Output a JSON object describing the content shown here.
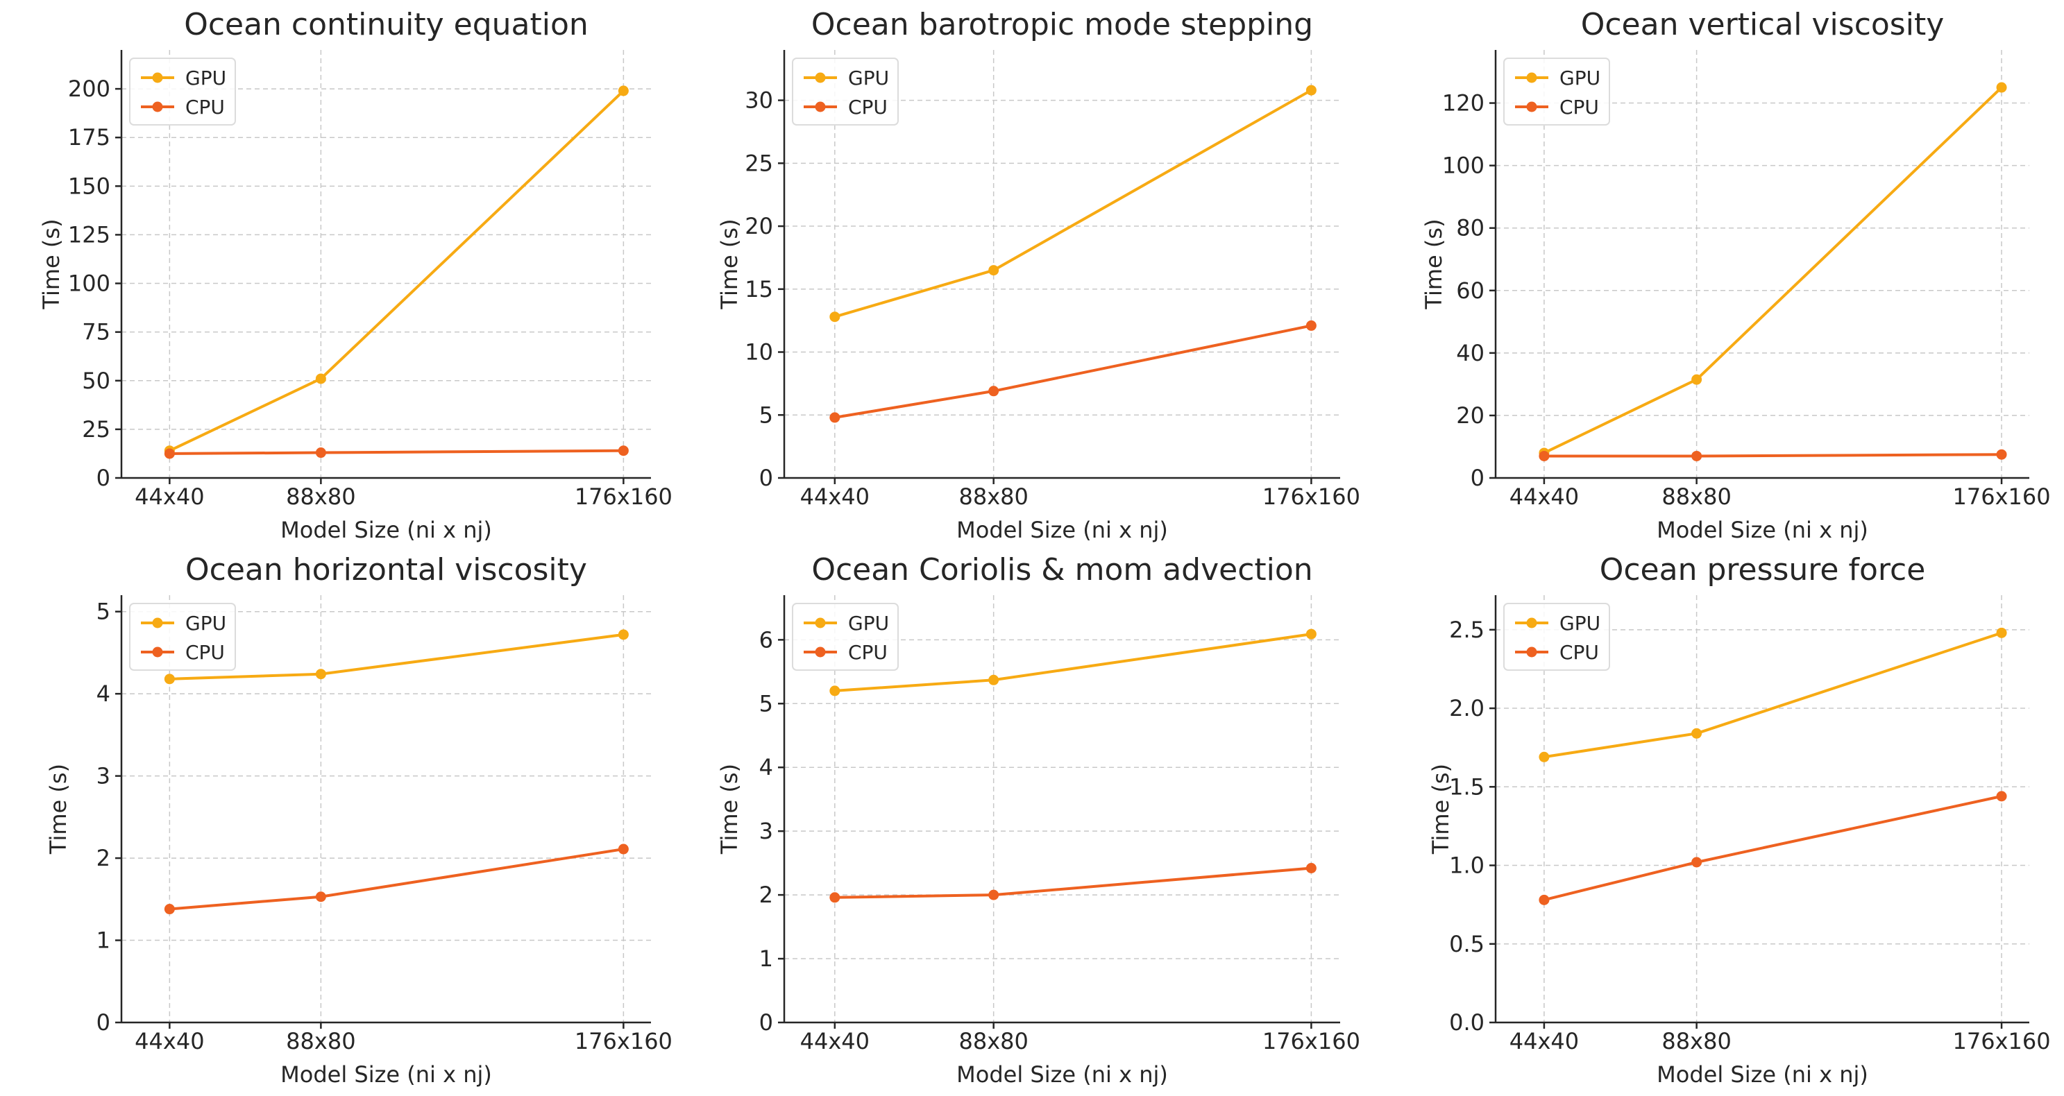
{
  "chart_data": [
    {
      "type": "line",
      "title": "Ocean continuity equation",
      "xlabel": "Model Size (ni x nj)",
      "ylabel": "Time (s)",
      "categories": [
        "44x40",
        "88x80",
        "176x160"
      ],
      "x": [
        44,
        88,
        176
      ],
      "ylim": [
        0,
        220
      ],
      "yticks": [
        0,
        25,
        50,
        75,
        100,
        125,
        150,
        175,
        200
      ],
      "ytick_labels": [
        "0",
        "25",
        "50",
        "75",
        "100",
        "125",
        "150",
        "175",
        "200"
      ],
      "grid": true,
      "legend_position": "top-left",
      "series": [
        {
          "name": "GPU",
          "color": "#f7aa13",
          "values": [
            14,
            51,
            199
          ]
        },
        {
          "name": "CPU",
          "color": "#ee6120",
          "values": [
            12.5,
            13,
            14
          ]
        }
      ]
    },
    {
      "type": "line",
      "title": "Ocean barotropic mode stepping",
      "xlabel": "Model Size (ni x nj)",
      "ylabel": "Time (s)",
      "categories": [
        "44x40",
        "88x80",
        "176x160"
      ],
      "x": [
        44,
        88,
        176
      ],
      "ylim": [
        0,
        34
      ],
      "yticks": [
        0,
        5,
        10,
        15,
        20,
        25,
        30
      ],
      "ytick_labels": [
        "0",
        "5",
        "10",
        "15",
        "20",
        "25",
        "30"
      ],
      "grid": true,
      "legend_position": "top-left",
      "series": [
        {
          "name": "GPU",
          "color": "#f7aa13",
          "values": [
            12.8,
            16.5,
            30.8
          ]
        },
        {
          "name": "CPU",
          "color": "#ee6120",
          "values": [
            4.8,
            6.9,
            12.1
          ]
        }
      ]
    },
    {
      "type": "line",
      "title": "Ocean vertical viscosity",
      "xlabel": "Model Size (ni x nj)",
      "ylabel": "Time (s)",
      "categories": [
        "44x40",
        "88x80",
        "176x160"
      ],
      "x": [
        44,
        88,
        176
      ],
      "ylim": [
        0,
        137
      ],
      "yticks": [
        0,
        20,
        40,
        60,
        80,
        100,
        120
      ],
      "ytick_labels": [
        "0",
        "20",
        "40",
        "60",
        "80",
        "100",
        "120"
      ],
      "grid": true,
      "legend_position": "top-left",
      "series": [
        {
          "name": "GPU",
          "color": "#f7aa13",
          "values": [
            8,
            31.5,
            125
          ]
        },
        {
          "name": "CPU",
          "color": "#ee6120",
          "values": [
            7,
            7,
            7.5
          ]
        }
      ]
    },
    {
      "type": "line",
      "title": "Ocean horizontal viscosity",
      "xlabel": "Model Size (ni x nj)",
      "ylabel": "Time (s)",
      "categories": [
        "44x40",
        "88x80",
        "176x160"
      ],
      "x": [
        44,
        88,
        176
      ],
      "ylim": [
        0,
        5.2
      ],
      "yticks": [
        0,
        1,
        2,
        3,
        4,
        5
      ],
      "ytick_labels": [
        "0",
        "1",
        "2",
        "3",
        "4",
        "5"
      ],
      "grid": true,
      "legend_position": "top-left",
      "series": [
        {
          "name": "GPU",
          "color": "#f7aa13",
          "values": [
            4.18,
            4.24,
            4.72
          ]
        },
        {
          "name": "CPU",
          "color": "#ee6120",
          "values": [
            1.38,
            1.53,
            2.11
          ]
        }
      ]
    },
    {
      "type": "line",
      "title": "Ocean Coriolis & mom advection",
      "xlabel": "Model Size (ni x nj)",
      "ylabel": "Time (s)",
      "categories": [
        "44x40",
        "88x80",
        "176x160"
      ],
      "x": [
        44,
        88,
        176
      ],
      "ylim": [
        0,
        6.7
      ],
      "yticks": [
        0,
        1,
        2,
        3,
        4,
        5,
        6
      ],
      "ytick_labels": [
        "0",
        "1",
        "2",
        "3",
        "4",
        "5",
        "6"
      ],
      "grid": true,
      "legend_position": "top-left",
      "series": [
        {
          "name": "GPU",
          "color": "#f7aa13",
          "values": [
            5.2,
            5.37,
            6.09
          ]
        },
        {
          "name": "CPU",
          "color": "#ee6120",
          "values": [
            1.96,
            2.0,
            2.42
          ]
        }
      ]
    },
    {
      "type": "line",
      "title": "Ocean pressure force",
      "xlabel": "Model Size (ni x nj)",
      "ylabel": "Time (s)",
      "categories": [
        "44x40",
        "88x80",
        "176x160"
      ],
      "x": [
        44,
        88,
        176
      ],
      "ylim": [
        0,
        2.72
      ],
      "yticks": [
        0,
        0.5,
        1.0,
        1.5,
        2.0,
        2.5
      ],
      "ytick_labels": [
        "0.0",
        "0.5",
        "1.0",
        "1.5",
        "2.0",
        "2.5"
      ],
      "grid": true,
      "legend_position": "top-left",
      "series": [
        {
          "name": "GPU",
          "color": "#f7aa13",
          "values": [
            1.69,
            1.84,
            2.48
          ]
        },
        {
          "name": "CPU",
          "color": "#ee6120",
          "values": [
            0.78,
            1.02,
            1.44
          ]
        }
      ]
    }
  ]
}
